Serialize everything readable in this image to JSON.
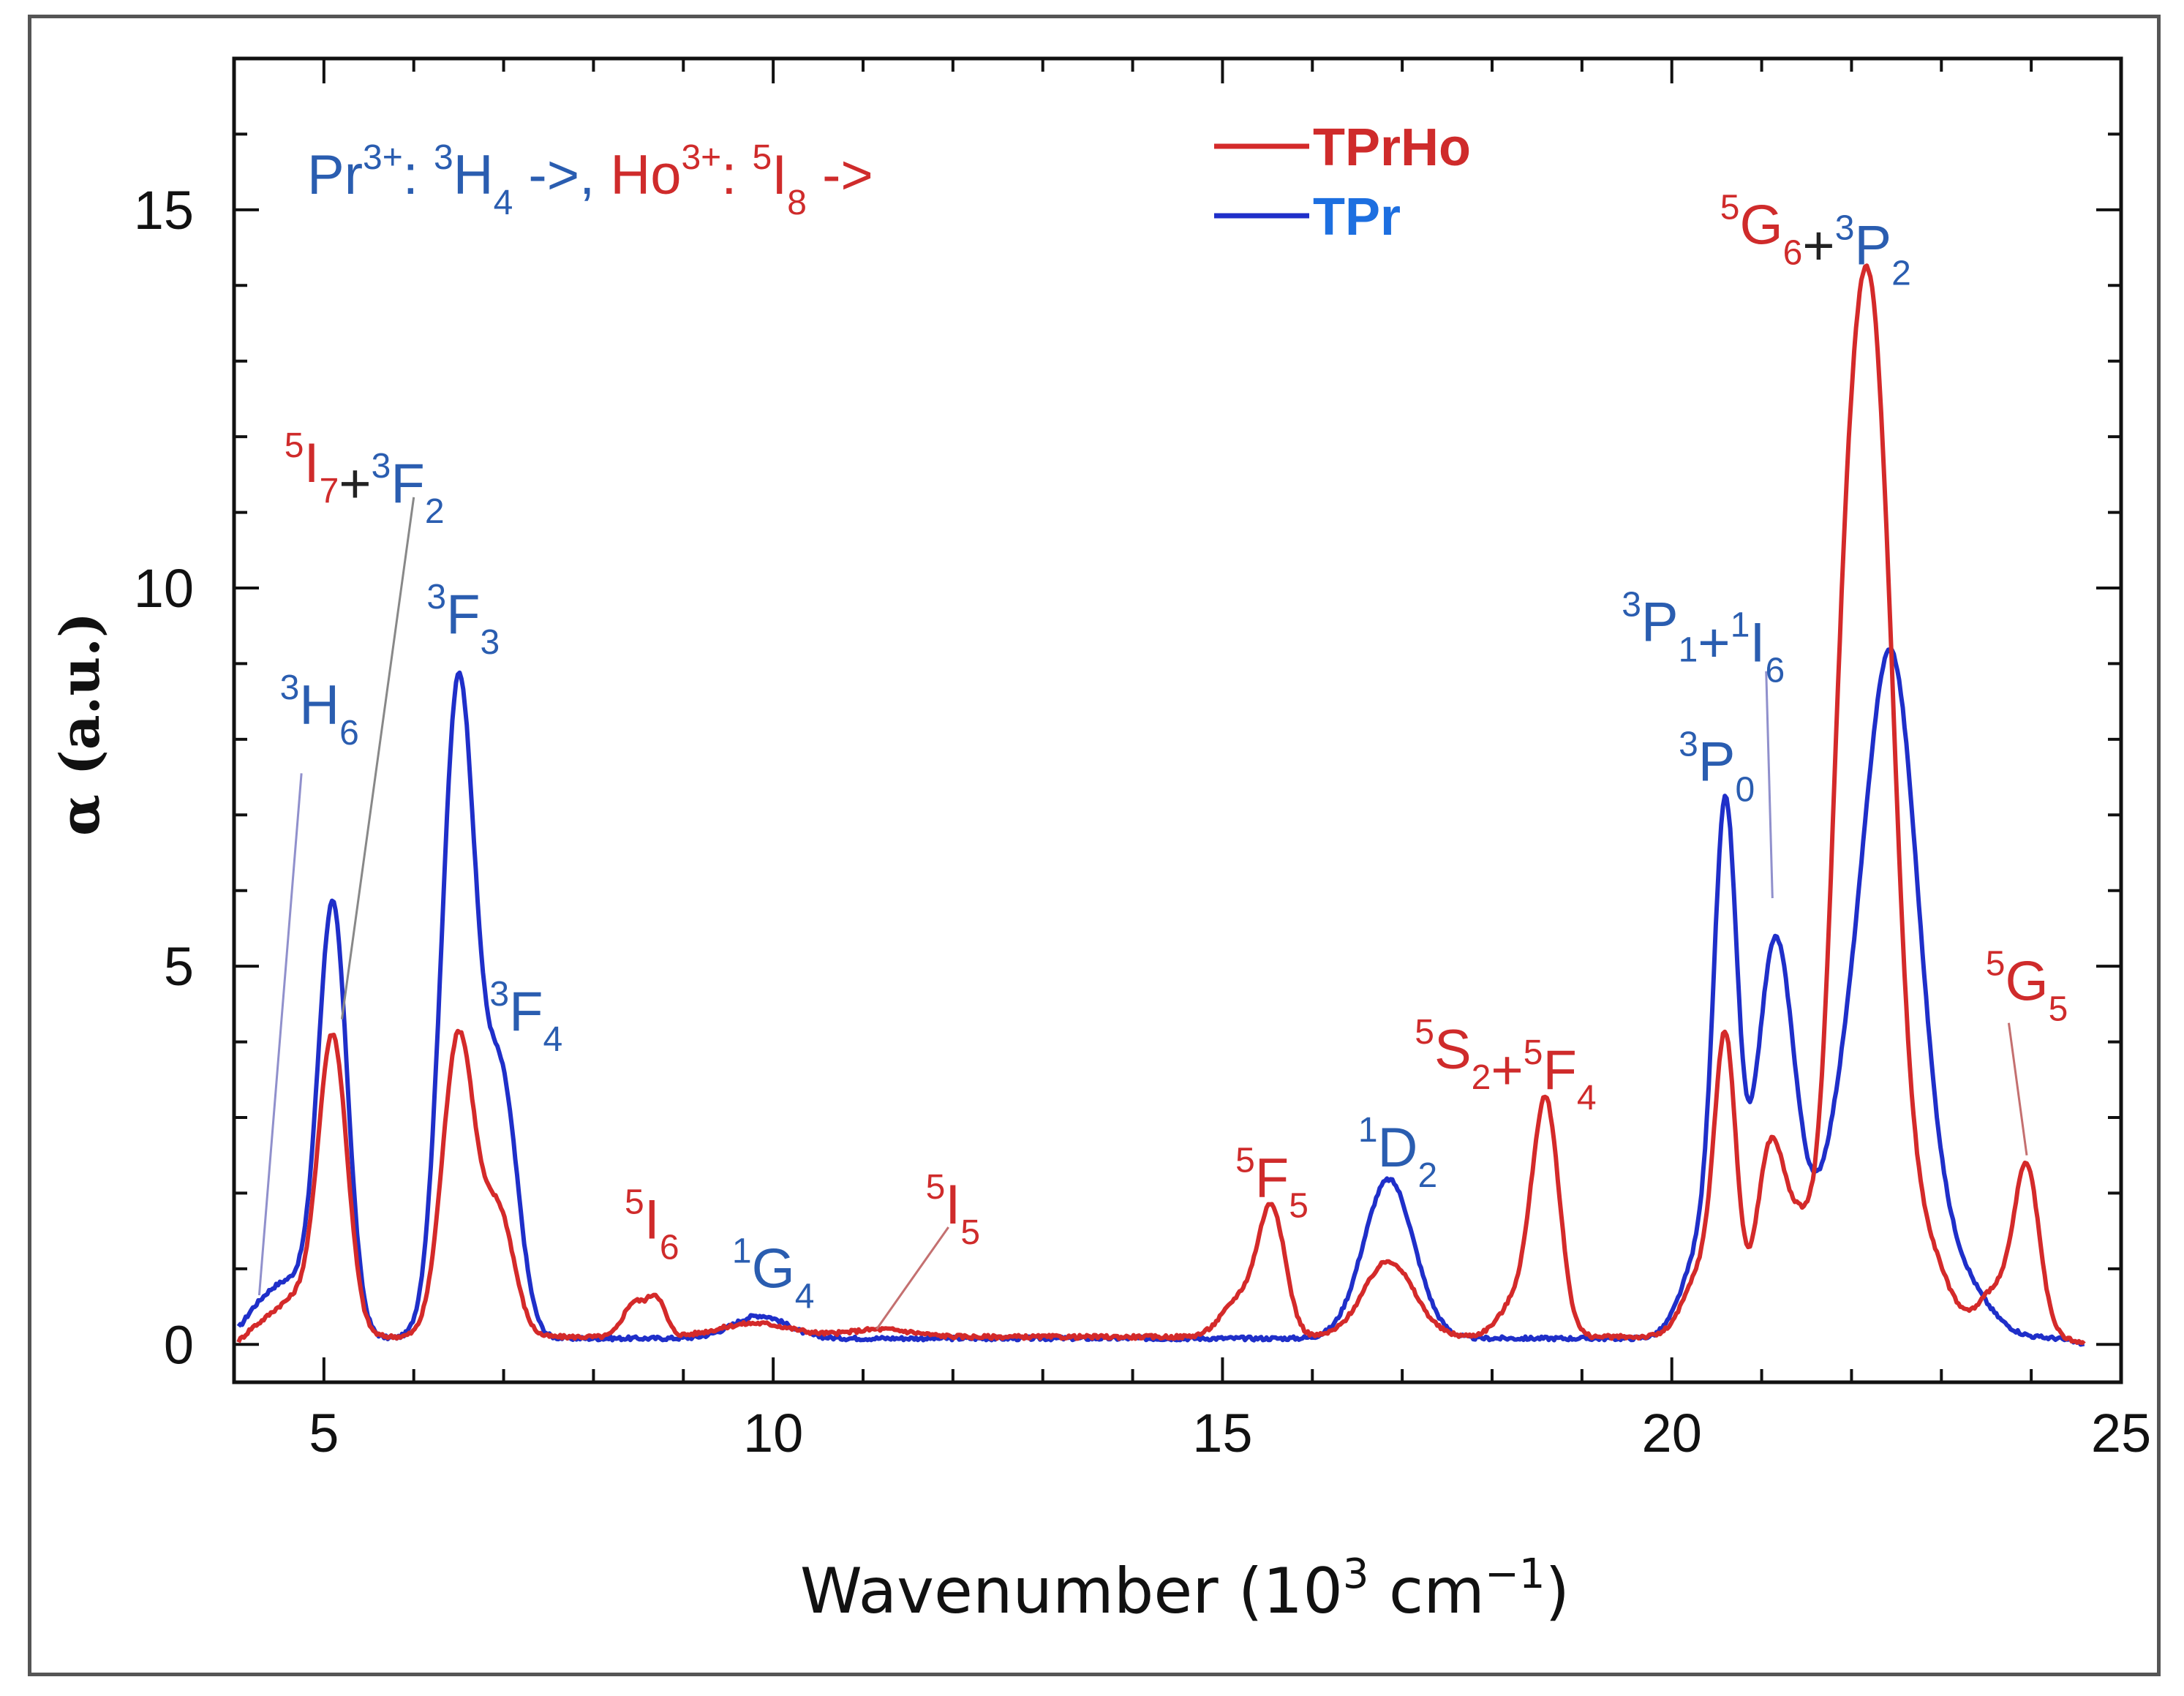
{
  "chart_data": {
    "type": "line",
    "xlabel_main": "Wavenumber (10",
    "xlabel_sup": "3",
    "xlabel_units": " cm",
    "xlabel_exp": "−1",
    "xlabel_close": ")",
    "ylabel": "α (a.u.)",
    "xlim": [
      4,
      25
    ],
    "ylim": [
      -0.5,
      17
    ],
    "x_ticks": [
      "5",
      "10",
      "15",
      "20",
      "25"
    ],
    "y_ticks": [
      "0",
      "5",
      "10",
      "15"
    ],
    "colors": {
      "TPrHo": "#d42a2a",
      "TPr": "#1f2fc9",
      "label_red": "#cf2b2b",
      "label_blue": "#2a5db0"
    },
    "legend": [
      "TPrHo",
      "TPr"
    ],
    "header": {
      "pr": "Pr",
      "pr_sup": "3+",
      "pr_term": ": ",
      "pr_term_sup": "3",
      "pr_level": "H",
      "pr_level_sub": "4",
      "pr_arrow": " ->,",
      "ho": "Ho",
      "ho_sup": "3+",
      "ho_term": ": ",
      "ho_term_sup": "5",
      "ho_level": "I",
      "ho_level_sub": "8",
      "ho_arrow": " ->"
    },
    "series": [
      {
        "name": "TPrHo",
        "peaks": [
          {
            "x": 5.1,
            "h": 3.8,
            "w": 0.16
          },
          {
            "x": 4.7,
            "h": 0.5,
            "w": 0.3
          },
          {
            "x": 6.5,
            "h": 4.0,
            "w": 0.18
          },
          {
            "x": 6.95,
            "h": 1.6,
            "w": 0.17
          },
          {
            "x": 8.45,
            "h": 0.45,
            "w": 0.12
          },
          {
            "x": 8.7,
            "h": 0.5,
            "w": 0.1
          },
          {
            "x": 9.8,
            "h": 0.18,
            "w": 0.4
          },
          {
            "x": 11.2,
            "h": 0.1,
            "w": 0.35
          },
          {
            "x": 15.2,
            "h": 0.5,
            "w": 0.2
          },
          {
            "x": 15.55,
            "h": 1.65,
            "w": 0.15
          },
          {
            "x": 16.85,
            "h": 1.0,
            "w": 0.28
          },
          {
            "x": 18.6,
            "h": 3.0,
            "w": 0.15
          },
          {
            "x": 18.3,
            "h": 0.5,
            "w": 0.2
          },
          {
            "x": 20.6,
            "h": 3.6,
            "w": 0.12
          },
          {
            "x": 20.35,
            "h": 0.9,
            "w": 0.2
          },
          {
            "x": 21.1,
            "h": 2.5,
            "w": 0.16
          },
          {
            "x": 21.45,
            "h": 1.3,
            "w": 0.16
          },
          {
            "x": 21.85,
            "h": 4.0,
            "w": 0.16
          },
          {
            "x": 22.05,
            "h": 7.0,
            "w": 0.18
          },
          {
            "x": 22.3,
            "h": 9.5,
            "w": 0.2
          },
          {
            "x": 22.7,
            "h": 1.5,
            "w": 0.3
          },
          {
            "x": 23.6,
            "h": 0.6,
            "w": 0.18
          },
          {
            "x": 23.95,
            "h": 2.2,
            "w": 0.14
          }
        ],
        "baseline": 0.1
      },
      {
        "name": "TPr",
        "peaks": [
          {
            "x": 5.1,
            "h": 5.5,
            "w": 0.16
          },
          {
            "x": 4.6,
            "h": 0.75,
            "w": 0.35
          },
          {
            "x": 6.5,
            "h": 8.7,
            "w": 0.19
          },
          {
            "x": 6.98,
            "h": 3.3,
            "w": 0.18
          },
          {
            "x": 9.85,
            "h": 0.3,
            "w": 0.3
          },
          {
            "x": 16.85,
            "h": 2.1,
            "w": 0.28
          },
          {
            "x": 20.6,
            "h": 6.3,
            "w": 0.13
          },
          {
            "x": 20.35,
            "h": 1.2,
            "w": 0.22
          },
          {
            "x": 21.15,
            "h": 5.2,
            "w": 0.22
          },
          {
            "x": 21.9,
            "h": 2.3,
            "w": 0.3
          },
          {
            "x": 22.45,
            "h": 8.5,
            "w": 0.3
          },
          {
            "x": 23.1,
            "h": 0.9,
            "w": 0.35
          }
        ],
        "baseline": 0.08
      }
    ],
    "annotations": [
      {
        "base": "3",
        "letter": "H",
        "sub": "6",
        "color": "blue",
        "x": 4.95,
        "y": 8.2,
        "lx1": 4.75,
        "ly1": 7.55,
        "lx2": 4.28,
        "ly2": 0.65,
        "line": "#9090cc"
      },
      {
        "base": "5",
        "letter": "I",
        "sub": "7",
        "color": "red",
        "x": 5.45,
        "y": 11.4,
        "plus": "+",
        "base2": "3",
        "letter2": "F",
        "sub2": "2",
        "color2": "blue",
        "lx1": 6.0,
        "ly1": 11.2,
        "lx2": 5.2,
        "ly2": 4.3,
        "line": "#888888"
      },
      {
        "base": "3",
        "letter": "F",
        "sub": "3",
        "color": "blue",
        "x": 6.55,
        "y": 9.4
      },
      {
        "base": "3",
        "letter": "F",
        "sub": "4",
        "color": "blue",
        "x": 7.25,
        "y": 4.15
      },
      {
        "base": "5",
        "letter": "I",
        "sub": "6",
        "color": "red",
        "x": 8.65,
        "y": 1.4
      },
      {
        "base": "1",
        "letter": "G",
        "sub": "4",
        "color": "blue",
        "x": 10.0,
        "y": 0.75
      },
      {
        "base": "5",
        "letter": "I",
        "sub": "5",
        "color": "red",
        "x": 12.0,
        "y": 1.6,
        "lx1": 11.95,
        "ly1": 1.55,
        "lx2": 11.15,
        "ly2": 0.2,
        "line": "#c47070"
      },
      {
        "base": "5",
        "letter": "F",
        "sub": "5",
        "color": "red",
        "x": 15.55,
        "y": 1.95
      },
      {
        "base": "1",
        "letter": "D",
        "sub": "2",
        "color": "blue",
        "x": 16.95,
        "y": 2.35
      },
      {
        "base": "5",
        "letter": "S",
        "sub": "2",
        "color": "red",
        "x": 18.15,
        "y": 3.65,
        "plus": "+",
        "base2": "5",
        "letter2": "F",
        "sub2": "4",
        "color2": "red"
      },
      {
        "base": "3",
        "letter": "P",
        "sub": "0",
        "color": "blue",
        "x": 20.5,
        "y": 7.45
      },
      {
        "base": "3",
        "letter": "P",
        "sub": "1",
        "color": "blue",
        "x": 20.35,
        "y": 9.3,
        "plus": "+",
        "base2": "1",
        "letter2": "I",
        "sub2": "6",
        "color2": "blue",
        "lx1": 21.05,
        "ly1": 8.9,
        "lx2": 21.12,
        "ly2": 5.9,
        "line": "#9090cc"
      },
      {
        "base": "5",
        "letter": "G",
        "sub": "6",
        "color": "red",
        "x": 21.6,
        "y": 14.55,
        "plus": "+",
        "base2": "3",
        "letter2": "P",
        "sub2": "2",
        "color2": "blue"
      },
      {
        "base": "5",
        "letter": "G",
        "sub": "5",
        "color": "red",
        "x": 23.95,
        "y": 4.55,
        "lx1": 23.75,
        "ly1": 4.25,
        "lx2": 23.95,
        "ly2": 2.5,
        "line": "#c47070"
      }
    ]
  }
}
